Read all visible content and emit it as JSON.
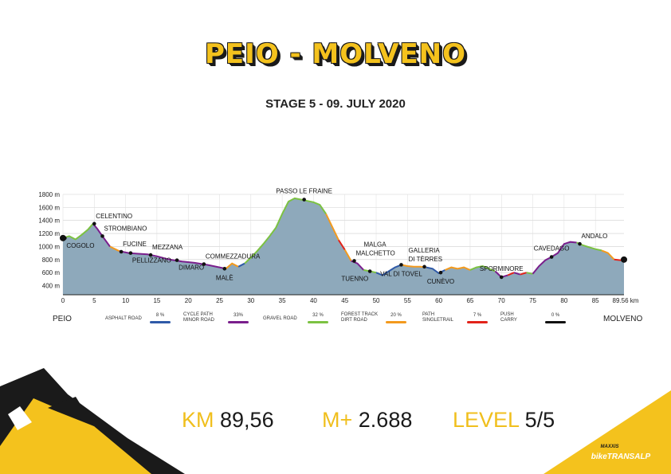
{
  "title": "PEIO - MOLVENO",
  "subtitle": "STAGE 5 - 09. JULY 2020",
  "start_label": "PEIO",
  "end_label": "MOLVENO",
  "stats": {
    "km_label": "KM",
    "km_value": "89,56",
    "climb_label": "M+",
    "climb_value": "2.688",
    "level_label": "LEVEL",
    "level_value": "5/5"
  },
  "brand": {
    "top": "MAXXIS",
    "main": "bikeTRANSALP"
  },
  "legend": [
    {
      "label_lines": [
        "ASPHALT ROAD"
      ],
      "pct": "8 %",
      "color": "#2f5aa8"
    },
    {
      "label_lines": [
        "CYCLE PATH",
        "MINOR ROAD"
      ],
      "pct": "33%",
      "color": "#7a1f8c"
    },
    {
      "label_lines": [
        "GRAVEL ROAD"
      ],
      "pct": "32 %",
      "color": "#7cc242"
    },
    {
      "label_lines": [
        "FOREST TRACK",
        "DIRT ROAD"
      ],
      "pct": "20 %",
      "color": "#f39a1e"
    },
    {
      "label_lines": [
        "PATH",
        "SINGLETRAIL"
      ],
      "pct": "7 %",
      "color": "#e2231a"
    },
    {
      "label_lines": [
        "PUSH",
        "CARRY"
      ],
      "pct": "0 %",
      "color": "#111111"
    }
  ],
  "chart_data": {
    "type": "area",
    "xlabel_unit": "km",
    "x_ticks": [
      0,
      5,
      10,
      15,
      20,
      25,
      30,
      35,
      40,
      45,
      50,
      55,
      60,
      65,
      70,
      75,
      80,
      85
    ],
    "x_tick_labels": [
      "0",
      "5",
      "10",
      "15",
      "20",
      "25",
      "30",
      "35",
      "40",
      "45",
      "50",
      "55",
      "60",
      "65",
      "70",
      "75",
      "80",
      "85"
    ],
    "x_end_label": "89.56 km",
    "xlim": [
      0,
      89.56
    ],
    "y_ticks": [
      400,
      600,
      800,
      1000,
      1200,
      1400,
      1600,
      1800
    ],
    "y_tick_labels": [
      "400 m",
      "600 m",
      "800 m",
      "1000 m",
      "1200 m",
      "1400 m",
      "1600 m",
      "1800 m"
    ],
    "ylim": [
      260,
      1800
    ],
    "grid": true,
    "fill_color": "#8ea9bb",
    "profile": [
      [
        0,
        1130
      ],
      [
        1,
        1160
      ],
      [
        2,
        1110
      ],
      [
        3,
        1180
      ],
      [
        4,
        1260
      ],
      [
        4.8,
        1350
      ],
      [
        5.5,
        1270
      ],
      [
        6.3,
        1160
      ],
      [
        7.5,
        1000
      ],
      [
        9,
        930
      ],
      [
        10.5,
        900
      ],
      [
        12,
        890
      ],
      [
        13.5,
        880
      ],
      [
        15,
        850
      ],
      [
        17,
        800
      ],
      [
        19,
        770
      ],
      [
        21,
        750
      ],
      [
        23,
        720
      ],
      [
        25,
        680
      ],
      [
        26,
        660
      ],
      [
        27,
        740
      ],
      [
        28,
        690
      ],
      [
        29,
        740
      ],
      [
        30,
        830
      ],
      [
        31,
        930
      ],
      [
        32,
        1040
      ],
      [
        33,
        1160
      ],
      [
        34,
        1290
      ],
      [
        35,
        1500
      ],
      [
        36,
        1690
      ],
      [
        37,
        1740
      ],
      [
        38,
        1720
      ],
      [
        39,
        1700
      ],
      [
        40,
        1680
      ],
      [
        41,
        1640
      ],
      [
        42,
        1500
      ],
      [
        43,
        1300
      ],
      [
        44,
        1100
      ],
      [
        45,
        950
      ],
      [
        46,
        780
      ],
      [
        47,
        740
      ],
      [
        48,
        640
      ],
      [
        49,
        620
      ],
      [
        50,
        600
      ],
      [
        51,
        560
      ],
      [
        52,
        620
      ],
      [
        53,
        680
      ],
      [
        54,
        720
      ],
      [
        55,
        700
      ],
      [
        56,
        690
      ],
      [
        57,
        690
      ],
      [
        58,
        680
      ],
      [
        59,
        660
      ],
      [
        60,
        590
      ],
      [
        61,
        640
      ],
      [
        62,
        680
      ],
      [
        63,
        660
      ],
      [
        64,
        680
      ],
      [
        65,
        640
      ],
      [
        66,
        680
      ],
      [
        67,
        700
      ],
      [
        68,
        660
      ],
      [
        69,
        620
      ],
      [
        70,
        530
      ],
      [
        71,
        560
      ],
      [
        72,
        600
      ],
      [
        73,
        570
      ],
      [
        74,
        600
      ],
      [
        75,
        580
      ],
      [
        76,
        700
      ],
      [
        77,
        790
      ],
      [
        78,
        840
      ],
      [
        79,
        900
      ],
      [
        80,
        1040
      ],
      [
        81,
        1070
      ],
      [
        82,
        1060
      ],
      [
        83,
        1020
      ],
      [
        84,
        990
      ],
      [
        85,
        960
      ],
      [
        86,
        940
      ],
      [
        87,
        900
      ],
      [
        88,
        800
      ],
      [
        89,
        790
      ],
      [
        89.56,
        800
      ]
    ],
    "surface_segments": [
      {
        "from": 0,
        "to": 4.8,
        "color": "#7cc242"
      },
      {
        "from": 4.8,
        "to": 7.5,
        "color": "#7a1f8c"
      },
      {
        "from": 7.5,
        "to": 9,
        "color": "#f39a1e"
      },
      {
        "from": 9,
        "to": 26,
        "color": "#7a1f8c"
      },
      {
        "from": 26,
        "to": 28,
        "color": "#f39a1e"
      },
      {
        "from": 28,
        "to": 29,
        "color": "#2f5aa8"
      },
      {
        "from": 29,
        "to": 42,
        "color": "#7cc242"
      },
      {
        "from": 42,
        "to": 44,
        "color": "#f39a1e"
      },
      {
        "from": 44,
        "to": 45,
        "color": "#e2231a"
      },
      {
        "from": 45,
        "to": 46,
        "color": "#f39a1e"
      },
      {
        "from": 46,
        "to": 48,
        "color": "#7a1f8c"
      },
      {
        "from": 48,
        "to": 50,
        "color": "#7cc242"
      },
      {
        "from": 50,
        "to": 54,
        "color": "#2f5aa8"
      },
      {
        "from": 54,
        "to": 58,
        "color": "#f39a1e"
      },
      {
        "from": 58,
        "to": 61,
        "color": "#2f5aa8"
      },
      {
        "from": 61,
        "to": 65,
        "color": "#f39a1e"
      },
      {
        "from": 65,
        "to": 69,
        "color": "#7cc242"
      },
      {
        "from": 69,
        "to": 71,
        "color": "#7a1f8c"
      },
      {
        "from": 71,
        "to": 72,
        "color": "#e2231a"
      },
      {
        "from": 72,
        "to": 73,
        "color": "#7a1f8c"
      },
      {
        "from": 73,
        "to": 74,
        "color": "#e2231a"
      },
      {
        "from": 74,
        "to": 75,
        "color": "#7cc242"
      },
      {
        "from": 75,
        "to": 82,
        "color": "#7a1f8c"
      },
      {
        "from": 82,
        "to": 86,
        "color": "#7cc242"
      },
      {
        "from": 86,
        "to": 88,
        "color": "#f39a1e"
      },
      {
        "from": 88,
        "to": 89.56,
        "color": "#e2231a"
      }
    ],
    "waypoints": [
      {
        "name": "COGOLO",
        "km": 0.3,
        "elev": 1130,
        "anchor": "below-right"
      },
      {
        "name": "CELENTINO",
        "km": 5.0,
        "elev": 1350,
        "anchor": "above-right"
      },
      {
        "name": "STROMBIANO",
        "km": 6.3,
        "elev": 1160,
        "anchor": "above-right"
      },
      {
        "name": "FUCINE",
        "km": 9.3,
        "elev": 920,
        "anchor": "above-right"
      },
      {
        "name": "PELLIZZANO",
        "km": 10.8,
        "elev": 900,
        "anchor": "below-right"
      },
      {
        "name": "MEZZANA",
        "km": 14.0,
        "elev": 870,
        "anchor": "above-right"
      },
      {
        "name": "DIMARO",
        "km": 18.2,
        "elev": 790,
        "anchor": "below-right"
      },
      {
        "name": "COMMEZZADURA",
        "km": 22.5,
        "elev": 730,
        "anchor": "above-right"
      },
      {
        "name": "MALÈ",
        "km": 25.8,
        "elev": 660,
        "anchor": "below-center"
      },
      {
        "name": "PASSO LE FRAINE",
        "km": 38.5,
        "elev": 1720,
        "anchor": "above-center"
      },
      {
        "name": "MALGA",
        "km": 46.5,
        "elev": 780,
        "anchor": "above-right-far"
      },
      {
        "name": "MALCHETTO",
        "km": 46.5,
        "elev": 780,
        "anchor": "above-right"
      },
      {
        "name": "TUENNO",
        "km": 49.0,
        "elev": 620,
        "anchor": "below-left"
      },
      {
        "name": "VAL DI TOVEL",
        "km": 54.0,
        "elev": 720,
        "anchor": "below-center"
      },
      {
        "name": "GALLERIA",
        "km": 57.7,
        "elev": 690,
        "anchor": "above-left-far"
      },
      {
        "name": "DI TÈRRES",
        "km": 57.7,
        "elev": 690,
        "anchor": "above-left"
      },
      {
        "name": "CUNÈVO",
        "km": 60.3,
        "elev": 600,
        "anchor": "below-center"
      },
      {
        "name": "SPORMINORE",
        "km": 70.0,
        "elev": 530,
        "anchor": "above-center"
      },
      {
        "name": "CAVEDAGO",
        "km": 78.0,
        "elev": 840,
        "anchor": "above-center"
      },
      {
        "name": "ANDALO",
        "km": 82.5,
        "elev": 1040,
        "anchor": "above-right"
      }
    ]
  }
}
